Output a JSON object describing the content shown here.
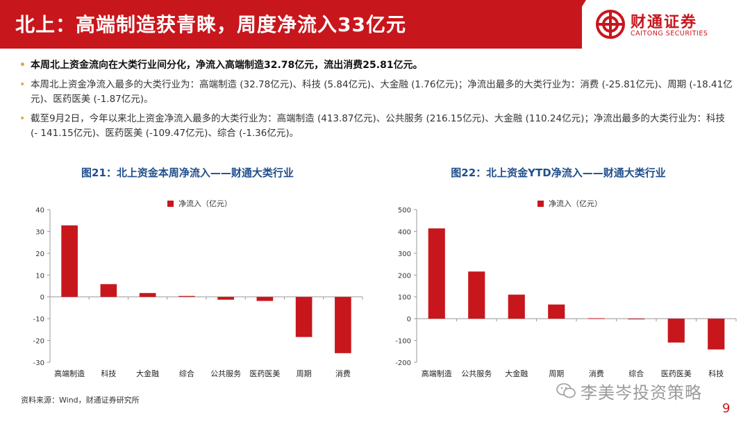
{
  "header": {
    "title": "北上：高端制造获青睐，周度净流入33亿元"
  },
  "logo": {
    "name_cn": "财通证券",
    "name_en": "CAITONG SECURITIES"
  },
  "bullets": [
    "本周北上资金流向在大类行业间分化，净流入高端制造32.78亿元，流出消费25.81亿元。",
    "本周北上资金净流入最多的大类行业为：高端制造 (32.78亿元)、科技 (5.84亿元)、大金融 (1.76亿元)；净流出最多的大类行业为：消费 (-25.81亿元)、周期 (-18.41亿元)、医药医美 (-1.87亿元)。",
    "截至9月2日，今年以来北上资金净流入最多的大类行业为：高端制造 (413.87亿元)、公共服务 (216.15亿元)、大金融 (110.24亿元)；净流出最多的大类行业为：科技 (- 141.15亿元)、医药医美 (-109.47亿元)、综合 (-1.36亿元)。"
  ],
  "chart_data": [
    {
      "type": "bar",
      "title": "图21：北上资金本周净流入——财通大类行业",
      "categories": [
        "高端制造",
        "科技",
        "大金融",
        "综合",
        "公共服务",
        "医药医美",
        "周期",
        "消费"
      ],
      "series": [
        {
          "name": "净流入（亿元）",
          "values": [
            32.78,
            5.84,
            1.76,
            0.4,
            -1.3,
            -1.87,
            -18.41,
            -25.81
          ]
        }
      ],
      "ylim": [
        -30,
        40
      ],
      "yticks": [
        -30,
        -20,
        -10,
        0,
        10,
        20,
        30,
        40
      ],
      "legend": "top-center",
      "grid": false,
      "color": "#c8161d"
    },
    {
      "type": "bar",
      "title": "图22：北上资金YTD净流入——财通大类行业",
      "categories": [
        "高端制造",
        "公共服务",
        "大金融",
        "周期",
        "消费",
        "综合",
        "医药医美",
        "科技"
      ],
      "series": [
        {
          "name": "净流入（亿元）",
          "values": [
            413.87,
            216.15,
            110.24,
            65,
            2,
            -1.36,
            -109.47,
            -141.15
          ]
        }
      ],
      "ylim": [
        -200,
        500
      ],
      "yticks": [
        -200,
        -100,
        0,
        100,
        200,
        300,
        400,
        500
      ],
      "legend": "top-center",
      "grid": false,
      "color": "#c8161d"
    }
  ],
  "footer": {
    "source": "资料来源：Wind，财通证券研究所",
    "watermark": "李美岑投资策略",
    "page": "9"
  }
}
